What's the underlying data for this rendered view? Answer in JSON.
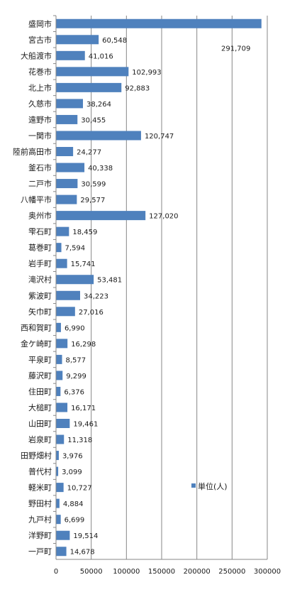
{
  "chart_data": {
    "type": "bar",
    "orientation": "horizontal",
    "categories": [
      "盛岡市",
      "宮古市",
      "大船渡市",
      "花巻市",
      "北上市",
      "久慈市",
      "遠野市",
      "一関市",
      "陸前高田市",
      "釜石市",
      "二戸市",
      "八幡平市",
      "奥州市",
      "雫石町",
      "葛巻町",
      "岩手町",
      "滝沢村",
      "紫波町",
      "矢巾町",
      "西和賀町",
      "金ケ崎町",
      "平泉町",
      "藤沢町",
      "住田町",
      "大槌町",
      "山田町",
      "岩泉町",
      "田野畑村",
      "普代村",
      "軽米町",
      "野田村",
      "九戸村",
      "洋野町",
      "一戸町"
    ],
    "values": [
      291709,
      60548,
      41016,
      102993,
      92883,
      38264,
      30455,
      120747,
      24277,
      40338,
      30599,
      29577,
      127020,
      18459,
      7594,
      15741,
      53481,
      34223,
      27016,
      6990,
      16298,
      8577,
      9299,
      6376,
      16171,
      19461,
      11318,
      3976,
      3099,
      10727,
      4884,
      6699,
      19514,
      14678
    ],
    "value_labels": [
      "291,709",
      "60,548",
      "41,016",
      "102,993",
      "92,883",
      "38,264",
      "30,455",
      "120,747",
      "24,277",
      "40,338",
      "30,599",
      "29,577",
      "127,020",
      "18,459",
      "7,594",
      "15,741",
      "53,481",
      "34,223",
      "27,016",
      "6,990",
      "16,298",
      "8,577",
      "9,299",
      "6,376",
      "16,171",
      "19,461",
      "11,318",
      "3,976",
      "3,099",
      "10,727",
      "4,884",
      "6,699",
      "19,514",
      "14,678"
    ],
    "series": [
      {
        "name": "単位(人)"
      }
    ],
    "xlim": [
      0,
      300000
    ],
    "x_ticks": [
      "0",
      "50000",
      "100000",
      "150000",
      "200000",
      "250000",
      "300000"
    ],
    "grid": true,
    "legend_position": "right",
    "bar_color": "#4f81bd"
  }
}
